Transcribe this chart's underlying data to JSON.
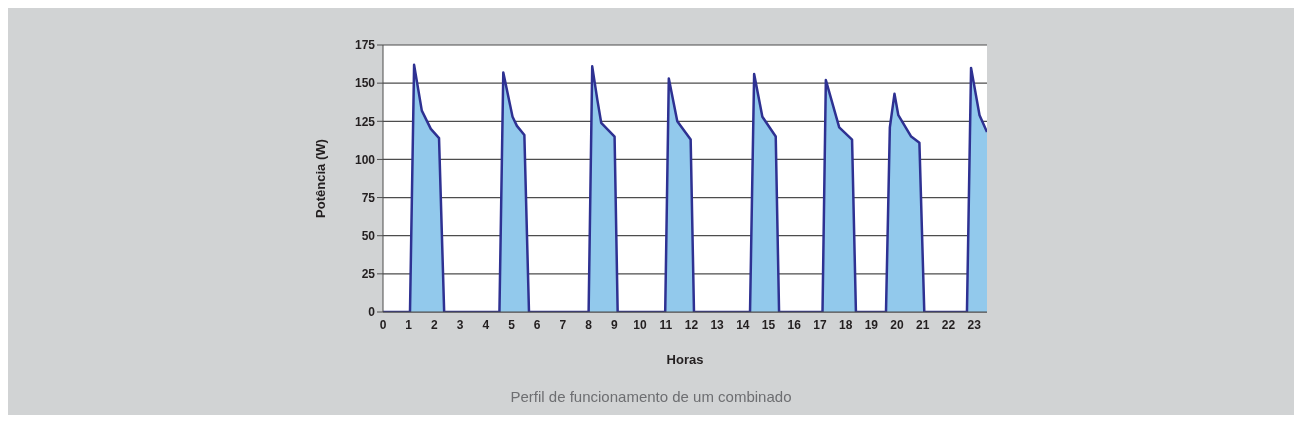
{
  "chart_data": {
    "type": "area",
    "xlabel": "Horas",
    "ylabel": "Potência (W)",
    "annotations": [
      "Perfil de funcionamento de um combinado"
    ],
    "x": [
      0,
      1.05,
      1.21,
      1.51,
      1.86,
      2.18,
      2.38,
      4.53,
      4.68,
      5.04,
      5.21,
      5.5,
      5.68,
      8.0,
      8.14,
      8.34,
      8.49,
      9.01,
      9.13,
      10.98,
      11.12,
      11.45,
      11.97,
      12.1,
      14.28,
      14.44,
      14.76,
      15.28,
      15.41,
      17.1,
      17.23,
      17.75,
      18.25,
      18.4,
      19.57,
      19.72,
      19.9,
      20.05,
      20.55,
      20.87,
      21.06,
      22.72,
      22.88,
      23.21,
      23.5
    ],
    "series": [
      {
        "color": "#2e3192",
        "values": [
          0,
          0,
          162,
          132,
          120,
          114,
          0,
          0,
          157,
          128,
          122,
          116,
          0,
          0,
          161,
          139,
          124,
          115,
          0,
          0,
          153,
          125,
          113,
          0,
          0,
          156,
          128,
          115,
          0,
          0,
          152,
          121,
          113,
          0,
          0,
          121,
          143,
          129,
          115,
          111,
          0,
          0,
          160,
          129,
          118
        ]
      }
    ],
    "xlim": [
      0,
      23.5
    ],
    "xticks": [
      0,
      1,
      2,
      3,
      4,
      5,
      6,
      7,
      8,
      9,
      10,
      11,
      12,
      13,
      14,
      15,
      16,
      17,
      18,
      19,
      20,
      21,
      22,
      23
    ],
    "ylim": [
      0,
      175
    ],
    "yticks": [
      0,
      25,
      50,
      75,
      100,
      125,
      150,
      175
    ],
    "grid": "y",
    "legend": false
  }
}
